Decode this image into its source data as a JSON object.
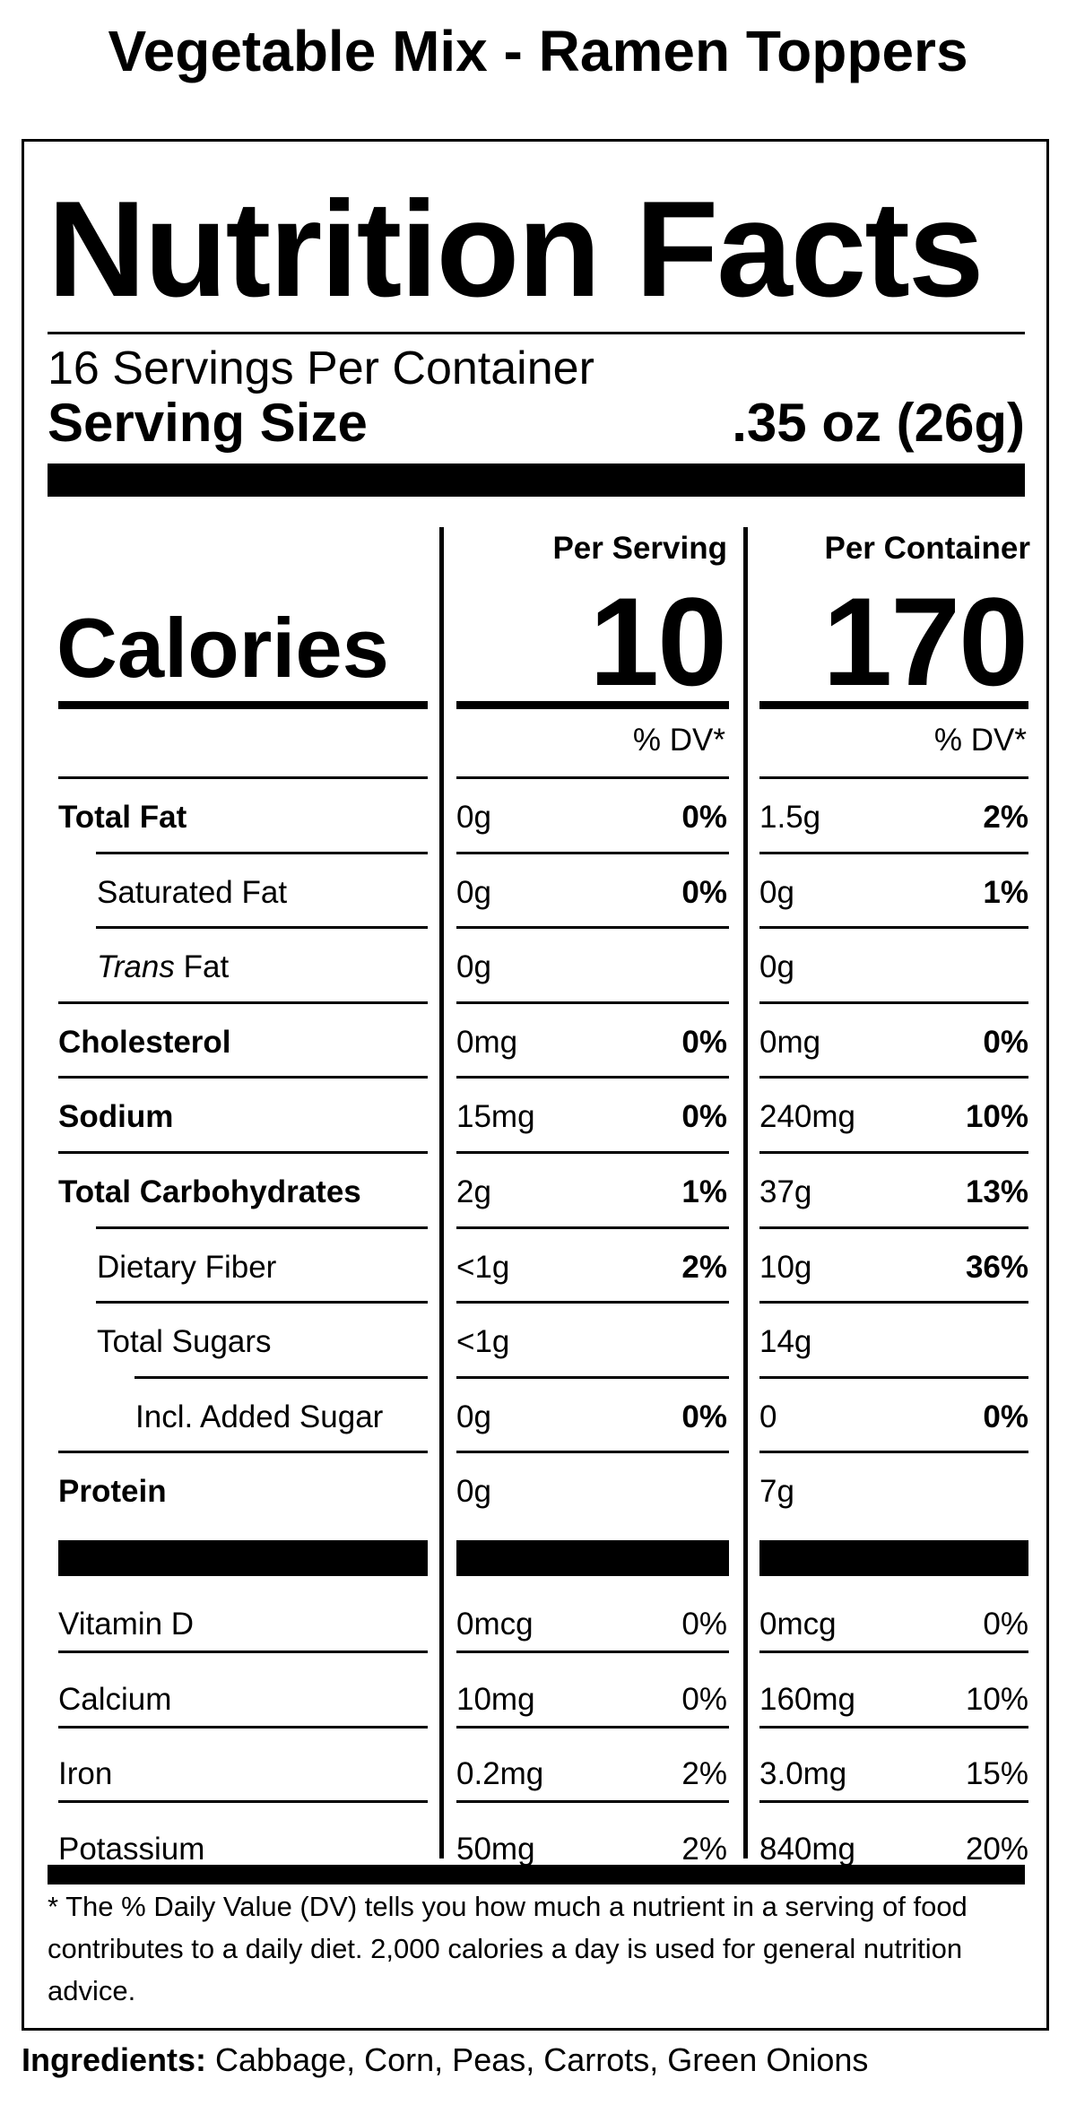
{
  "product_title": "Vegetable Mix - Ramen Toppers",
  "label": {
    "heading": "Nutrition Facts",
    "servings_per_container": "16 Servings Per Container",
    "serving_size_label": "Serving Size",
    "serving_size_value": ".35 oz (26g)",
    "columns": {
      "per_serving": "Per Serving",
      "per_container": "Per Container",
      "dv_header": "% DV*"
    },
    "calories": {
      "label": "Calories",
      "per_serving": "10",
      "per_container": "170"
    },
    "rows": [
      {
        "name": "Total Fat",
        "serving_amount": "0g",
        "serving_dv": "0%",
        "container_amount": "1.5g",
        "container_dv": "2%"
      },
      {
        "name": "Saturated Fat",
        "serving_amount": "0g",
        "serving_dv": "0%",
        "container_amount": "0g",
        "container_dv": "1%"
      },
      {
        "name_italic": "Trans",
        "name": " Fat",
        "serving_amount": "0g",
        "serving_dv": "",
        "container_amount": "0g",
        "container_dv": ""
      },
      {
        "name": "Cholesterol",
        "serving_amount": "0mg",
        "serving_dv": "0%",
        "container_amount": "0mg",
        "container_dv": "0%"
      },
      {
        "name": "Sodium",
        "serving_amount": "15mg",
        "serving_dv": "0%",
        "container_amount": "240mg",
        "container_dv": "10%"
      },
      {
        "name": "Total Carbohydrates",
        "serving_amount": "2g",
        "serving_dv": "1%",
        "container_amount": "37g",
        "container_dv": "13%"
      },
      {
        "name": "Dietary Fiber",
        "serving_amount": "<1g",
        "serving_dv": "2%",
        "container_amount": "10g",
        "container_dv": "36%"
      },
      {
        "name": "Total Sugars",
        "serving_amount": "<1g",
        "serving_dv": "",
        "container_amount": "14g",
        "container_dv": ""
      },
      {
        "name": "Incl. Added Sugar",
        "serving_amount": "0g",
        "serving_dv": "0%",
        "container_amount": "0",
        "container_dv": "0%"
      },
      {
        "name": "Protein",
        "serving_amount": "0g",
        "serving_dv": "",
        "container_amount": "7g",
        "container_dv": ""
      }
    ],
    "vitamins": [
      {
        "name": "Vitamin D",
        "serving_amount": "0mcg",
        "serving_dv": "0%",
        "container_amount": "0mcg",
        "container_dv": "0%"
      },
      {
        "name": "Calcium",
        "serving_amount": "10mg",
        "serving_dv": "0%",
        "container_amount": "160mg",
        "container_dv": "10%"
      },
      {
        "name": "Iron",
        "serving_amount": "0.2mg",
        "serving_dv": "2%",
        "container_amount": "3.0mg",
        "container_dv": "15%"
      },
      {
        "name": "Potassium",
        "serving_amount": "50mg",
        "serving_dv": "2%",
        "container_amount": "840mg",
        "container_dv": "20%"
      }
    ],
    "footnote": "* The % Daily Value (DV) tells you how much a nutrient in a serving of food contributes to a daily diet. 2,000 calories a day is used for general nutrition advice."
  },
  "ingredients": {
    "label": "Ingredients:",
    "text": " Cabbage, Corn, Peas, Carrots, Green Onions"
  }
}
